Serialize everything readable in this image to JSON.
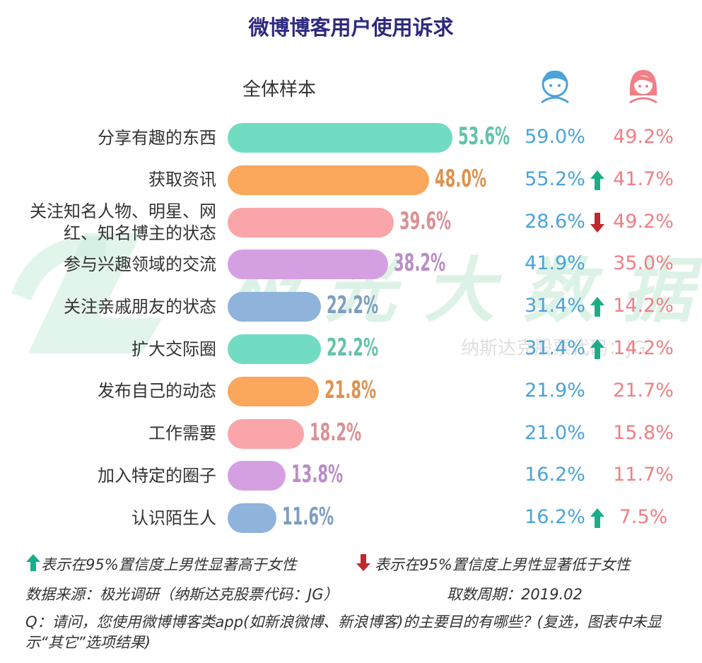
{
  "chart_data": {
    "type": "bar",
    "title": "微博博客用户使用诉求",
    "subtitle": "全体样本",
    "categories": [
      "分享有趣的东西",
      "获取资讯",
      "关注知名人物、明星、网红、知名博主的状态",
      "参与兴趣领域的交流",
      "关注亲戚朋友的状态",
      "扩大交际圈",
      "发布自己的动态",
      "工作需要",
      "加入特定的圈子",
      "认识陌生人"
    ],
    "values": [
      53.6,
      48.0,
      39.6,
      38.2,
      22.2,
      22.2,
      21.8,
      18.2,
      13.8,
      11.6
    ],
    "value_labels": [
      "53.6%",
      "48.0%",
      "39.6%",
      "38.2%",
      "22.2%",
      "22.2%",
      "21.8%",
      "18.2%",
      "13.8%",
      "11.6%"
    ],
    "colors": [
      "#72dcc3",
      "#fba75c",
      "#f9a5aa",
      "#d5a0e2",
      "#8fb3da",
      "#72dcc3",
      "#fba75c",
      "#f9a5aa",
      "#d5a0e2",
      "#8fb3da"
    ],
    "columns": [
      {
        "color": "#4aa3d9",
        "values": [
          59.0,
          55.2,
          28.6,
          41.9,
          31.4,
          31.4,
          21.9,
          21.0,
          16.2,
          16.2
        ],
        "value_labels": [
          "59.0%",
          "55.2%",
          "28.6%",
          "41.9%",
          "31.4%",
          "31.4%",
          "21.9%",
          "21.0%",
          "16.2%",
          "16.2%"
        ]
      },
      {
        "color": "#f07f86",
        "values": [
          49.2,
          41.7,
          49.2,
          35.0,
          14.2,
          14.2,
          21.7,
          15.8,
          11.7,
          7.5
        ],
        "value_labels": [
          "49.2%",
          "41.7%",
          "49.2%",
          "35.0%",
          "14.2%",
          "14.2%",
          "21.7%",
          "15.8%",
          "11.7%",
          "7.5%"
        ]
      }
    ],
    "significance": [
      null,
      "up",
      "down",
      null,
      "up",
      "up",
      null,
      null,
      null,
      "up"
    ],
    "note_up": "表示在95%置信度上男性显著高于女性",
    "note_down": "表示在95%置信度上男性显著低于女性",
    "source": "数据来源：极光调研（纳斯达克股票代码：JG）",
    "period": "取数周期：2019.02",
    "question": "Q：请问，您使用微博博客类app(如新浪微博、新浪博客)的主要目的有哪些？(复选，图表中未显示“其它”选项结果)",
    "watermark": "极光大数据",
    "watermark_sub": "纳斯达克股票代码：JG"
  }
}
